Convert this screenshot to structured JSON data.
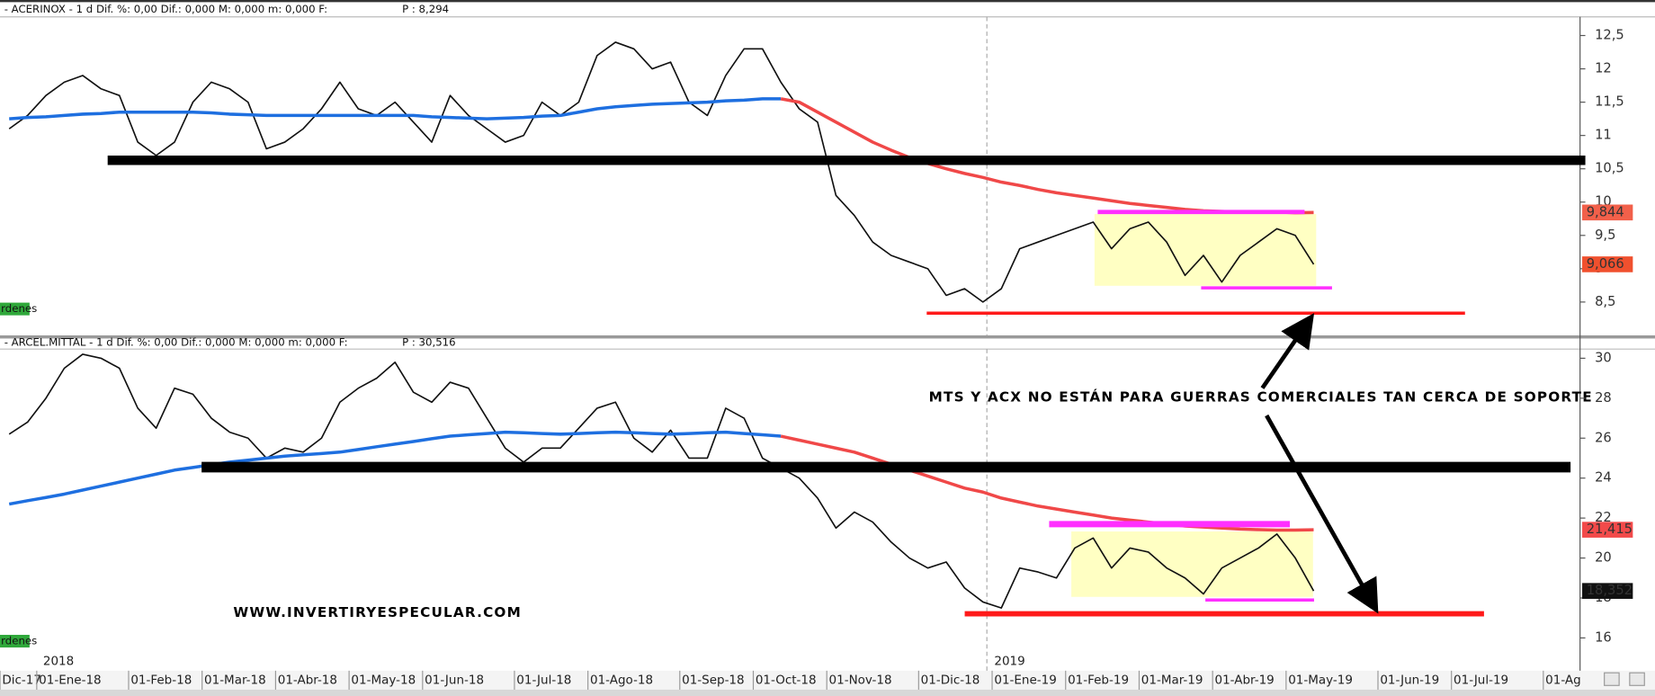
{
  "chart_data": [
    {
      "type": "line",
      "title": "- ACERINOX -  1 d Dif. %: 0,00 Dif.: 0,000 M: 0,000 m: 0,000 F:",
      "last_price": "P : 8,294",
      "tag": "rdenes",
      "ylim": [
        8.0,
        12.78
      ],
      "yticks": [
        {
          "value": 8.5,
          "label": "8,5"
        },
        9,
        {
          "value": 9.5,
          "label": "9,5"
        },
        10,
        {
          "value": 10.5,
          "label": "10,5"
        },
        11,
        {
          "value": 11.5,
          "label": "11,5"
        },
        12,
        {
          "value": 12.5,
          "label": "12,5"
        }
      ],
      "series": [
        {
          "color": "#111111",
          "values": [
            11.1,
            11.3,
            11.6,
            11.8,
            11.9,
            11.7,
            11.6,
            10.9,
            10.7,
            10.9,
            11.5,
            11.8,
            11.7,
            11.5,
            10.8,
            10.9,
            11.1,
            11.4,
            11.8,
            11.4,
            11.3,
            11.5,
            11.2,
            10.9,
            11.6,
            11.3,
            11.1,
            10.9,
            11.0,
            11.5,
            11.3,
            11.5,
            12.2,
            12.4,
            12.3,
            12.0,
            12.1,
            11.5,
            11.3,
            11.9,
            12.3,
            12.3,
            11.8,
            11.4,
            11.2,
            10.1,
            9.8,
            9.4,
            9.2,
            9.1,
            9.0,
            8.6,
            8.7,
            8.5,
            8.7,
            9.3,
            9.4,
            9.5,
            9.6,
            9.7,
            9.3,
            9.6,
            9.7,
            9.4,
            8.9,
            9.2,
            8.8,
            9.2,
            9.4,
            9.6,
            9.5,
            9.066,
            null,
            null,
            null,
            null,
            null,
            null,
            null,
            null,
            null,
            null,
            null,
            null,
            null,
            null
          ]
        },
        {
          "color": "#1e6fe0",
          "values": [
            11.25,
            11.27,
            11.28,
            11.3,
            11.32,
            11.33,
            11.35,
            11.35,
            11.35,
            11.35,
            11.35,
            11.34,
            11.32,
            11.31,
            11.3,
            11.3,
            11.3,
            11.3,
            11.3,
            11.3,
            11.3,
            11.3,
            11.3,
            11.28,
            11.27,
            11.26,
            11.25,
            11.26,
            11.27,
            11.29,
            11.3,
            11.35,
            11.4,
            11.43,
            11.45,
            11.47,
            11.48,
            11.49,
            11.5,
            11.52,
            11.53,
            11.55,
            11.55,
            null,
            null,
            null,
            null,
            null,
            null,
            null,
            null,
            null,
            null,
            null,
            null,
            null,
            null,
            null,
            null,
            null,
            null,
            null,
            null,
            null,
            null,
            null,
            null,
            null,
            null,
            null,
            null,
            null,
            null,
            null,
            null,
            null,
            null,
            null,
            null,
            null,
            null,
            null,
            null,
            null,
            null,
            null
          ]
        },
        {
          "color": "#f04848",
          "values": [
            null,
            null,
            null,
            null,
            null,
            null,
            null,
            null,
            null,
            null,
            null,
            null,
            null,
            null,
            null,
            null,
            null,
            null,
            null,
            null,
            null,
            null,
            null,
            null,
            null,
            null,
            null,
            null,
            null,
            null,
            null,
            null,
            null,
            null,
            null,
            null,
            null,
            null,
            null,
            null,
            null,
            null,
            11.55,
            11.5,
            11.35,
            11.2,
            11.05,
            10.9,
            10.78,
            10.67,
            10.58,
            10.5,
            10.43,
            10.37,
            10.3,
            10.25,
            10.19,
            10.14,
            10.1,
            10.06,
            10.02,
            9.98,
            9.95,
            9.92,
            9.89,
            9.87,
            9.86,
            9.85,
            9.85,
            9.85,
            9.84,
            9.844,
            null,
            null,
            null,
            null,
            null,
            null,
            null,
            null,
            null,
            null,
            null,
            null,
            null,
            null
          ]
        }
      ],
      "price_labels": [
        {
          "value": 9.844,
          "label": "9,844",
          "color": "#f2604a"
        },
        {
          "value": 9.066,
          "label": "9,066",
          "color": "#f0502e"
        }
      ]
    },
    {
      "type": "line",
      "title": "- ARCEL.MITTAL -  1 d Dif. %: 0,00 Dif.: 0,000 M: 0,000 m: 0,000 F:",
      "last_price": "P : 30,516",
      "tag": "rdenes",
      "ylim": [
        14.36,
        30.46
      ],
      "yticks": [
        16,
        18,
        20,
        22,
        24,
        26,
        28,
        30
      ],
      "categories": [
        "Dic-17",
        null,
        "01-Ene-18",
        null,
        null,
        null,
        null,
        "01-Feb-18",
        null,
        null,
        null,
        "01-Mar-18",
        null,
        null,
        null,
        "01-Abr-18",
        null,
        null,
        null,
        "01-May-18",
        null,
        null,
        null,
        "01-Jun-18",
        null,
        null,
        null,
        null,
        "01-Jul-18",
        null,
        null,
        null,
        "01-Ago-18",
        null,
        null,
        null,
        null,
        "01-Sep-18",
        null,
        null,
        null,
        "01-Oct-18",
        null,
        null,
        null,
        "01-Nov-18",
        null,
        null,
        null,
        null,
        "01-Dic-18",
        null,
        null,
        null,
        "01-Ene-19",
        null,
        null,
        null,
        "01-Feb-19",
        null,
        null,
        null,
        "01-Mar-19",
        null,
        null,
        null,
        "01-Abr-19",
        null,
        null,
        null,
        "01-May-19",
        null,
        null,
        null,
        null,
        "01-Jun-19",
        null,
        null,
        null,
        "01-Jul-19",
        null,
        null,
        null,
        null,
        "01-Ag",
        null
      ],
      "year_labels": [
        "2018",
        "2019"
      ],
      "series": [
        {
          "color": "#111111",
          "values": [
            26.2,
            26.8,
            28.0,
            29.5,
            30.2,
            30.0,
            29.5,
            27.5,
            26.5,
            28.5,
            28.2,
            27.0,
            26.3,
            26.0,
            25.0,
            25.5,
            25.3,
            26.0,
            27.8,
            28.5,
            29.0,
            29.8,
            28.3,
            27.8,
            28.8,
            28.5,
            27.0,
            25.5,
            24.8,
            25.5,
            25.5,
            26.5,
            27.5,
            27.8,
            26.0,
            25.3,
            26.4,
            25.0,
            25.0,
            27.5,
            27.0,
            25.0,
            24.5,
            24.0,
            23.0,
            21.5,
            22.3,
            21.8,
            20.8,
            20.0,
            19.5,
            19.8,
            18.5,
            17.8,
            17.5,
            19.5,
            19.3,
            19.0,
            20.5,
            21.0,
            19.5,
            20.5,
            20.3,
            19.5,
            19.0,
            18.2,
            19.5,
            20.0,
            20.5,
            21.2,
            20.0,
            18.352,
            null,
            null,
            null,
            null,
            null,
            null,
            null,
            null,
            null,
            null,
            null,
            null,
            null,
            null
          ]
        },
        {
          "color": "#1e6fe0",
          "values": [
            22.7,
            22.87,
            23.03,
            23.2,
            23.4,
            23.6,
            23.8,
            24.0,
            24.2,
            24.4,
            24.53,
            24.67,
            24.8,
            24.9,
            25.0,
            25.1,
            25.17,
            25.23,
            25.3,
            25.43,
            25.57,
            25.7,
            25.83,
            25.97,
            26.1,
            26.17,
            26.23,
            26.3,
            26.27,
            26.23,
            26.2,
            26.23,
            26.27,
            26.3,
            26.27,
            26.23,
            26.2,
            26.23,
            26.27,
            26.3,
            26.23,
            26.17,
            26.1,
            null,
            null,
            null,
            null,
            null,
            null,
            null,
            null,
            null,
            null,
            null,
            null,
            null,
            null,
            null,
            null,
            null,
            null,
            null,
            null,
            null,
            null,
            null,
            null,
            null,
            null,
            null,
            null,
            null,
            null,
            null,
            null,
            null,
            null,
            null,
            null,
            null,
            null,
            null,
            null,
            null,
            null,
            null
          ]
        },
        {
          "color": "#f04848",
          "values": [
            null,
            null,
            null,
            null,
            null,
            null,
            null,
            null,
            null,
            null,
            null,
            null,
            null,
            null,
            null,
            null,
            null,
            null,
            null,
            null,
            null,
            null,
            null,
            null,
            null,
            null,
            null,
            null,
            null,
            null,
            null,
            null,
            null,
            null,
            null,
            null,
            null,
            null,
            null,
            null,
            null,
            null,
            26.1,
            25.9,
            25.7,
            25.5,
            25.3,
            25.0,
            24.7,
            24.4,
            24.1,
            23.8,
            23.5,
            23.3,
            23.0,
            22.8,
            22.6,
            22.45,
            22.3,
            22.15,
            22.0,
            21.9,
            21.8,
            21.7,
            21.6,
            21.55,
            21.5,
            21.45,
            21.42,
            21.4,
            21.4,
            21.415,
            null,
            null,
            null,
            null,
            null,
            null,
            null,
            null,
            null,
            null,
            null,
            null,
            null,
            null
          ]
        }
      ],
      "price_labels": [
        {
          "value": 21.415,
          "label": "21,415",
          "color": "#f24a4a"
        },
        {
          "value": 18.352,
          "label": "18,352",
          "color": "#111111"
        }
      ]
    }
  ],
  "annotations": {
    "headline": "MTS Y ACX NO ESTÁN PARA GUERRAS COMERCIALES TAN CERCA DE SOPORTE",
    "website": "WWW.INVERTIRYESPECULAR.COM"
  }
}
